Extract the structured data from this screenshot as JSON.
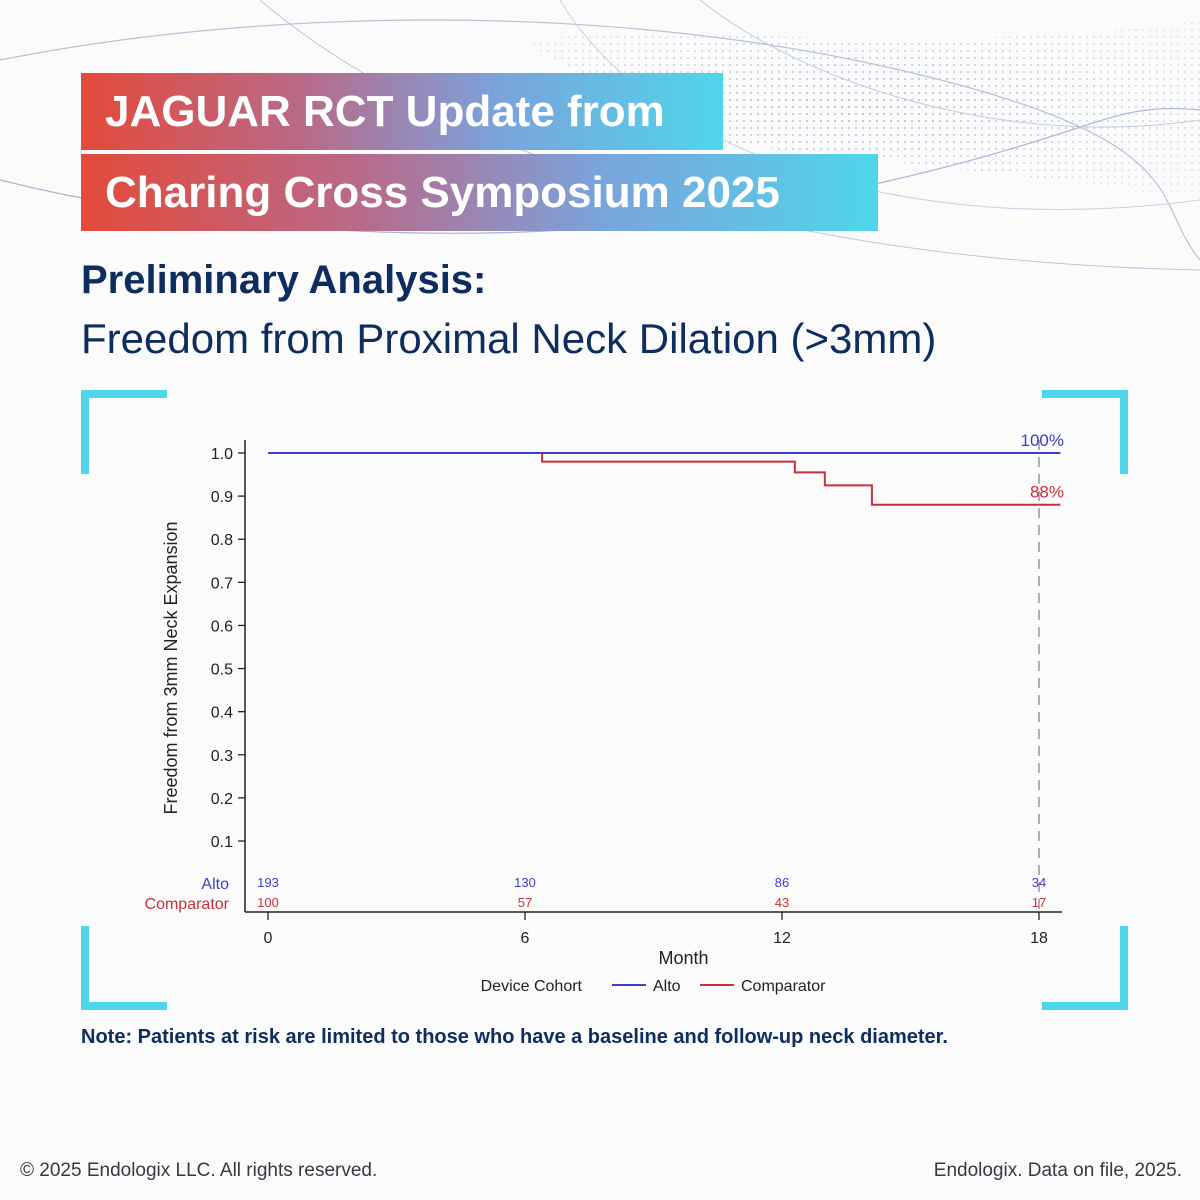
{
  "banner": {
    "line1": "JAGUAR RCT Update from",
    "line2": "Charing Cross Symposium 2025"
  },
  "heading": "Preliminary Analysis:",
  "subheading": "Freedom from Proximal Neck Dilation (>3mm)",
  "note": "Note: Patients at risk are limited to those who have a baseline and follow-up neck diameter.",
  "footer": {
    "copyright": "© 2025 Endologix LLC. All rights reserved.",
    "source": "Endologix. Data on file, 2025."
  },
  "colors": {
    "alto": "#3b3fc9",
    "comparator": "#c8303a",
    "accent": "#4fd6ea"
  },
  "chart_data": {
    "type": "line",
    "step": true,
    "xlabel": "Month",
    "ylabel": "Freedom from 3mm Neck Expansion",
    "xlim": [
      -1,
      18.5
    ],
    "ylim": [
      0,
      1.0
    ],
    "x_ticks": [
      0,
      6,
      12,
      18
    ],
    "y_ticks": [
      0.1,
      0.2,
      0.3,
      0.4,
      0.5,
      0.6,
      0.7,
      0.8,
      0.9,
      1.0
    ],
    "y_tick_labels": [
      "0.1",
      "0.2",
      "0.3",
      "0.4",
      "0.5",
      "0.6",
      "0.7",
      "0.8",
      "0.9",
      "1.0"
    ],
    "reference_line_x": 18,
    "legend_title": "Device Cohort",
    "legend_position": "bottom",
    "series": [
      {
        "name": "Alto",
        "color_key": "alto",
        "points": [
          [
            0,
            1.0
          ],
          [
            18.5,
            1.0
          ]
        ],
        "end_label": "100%",
        "at_risk": [
          193,
          130,
          86,
          34
        ]
      },
      {
        "name": "Comparator",
        "color_key": "comparator",
        "points": [
          [
            0,
            1.0
          ],
          [
            6.4,
            0.98
          ],
          [
            12.3,
            0.955
          ],
          [
            13.0,
            0.925
          ],
          [
            14.1,
            0.88
          ],
          [
            18.5,
            0.88
          ]
        ],
        "end_label": "88%",
        "at_risk": [
          100,
          57,
          43,
          17
        ]
      }
    ]
  }
}
